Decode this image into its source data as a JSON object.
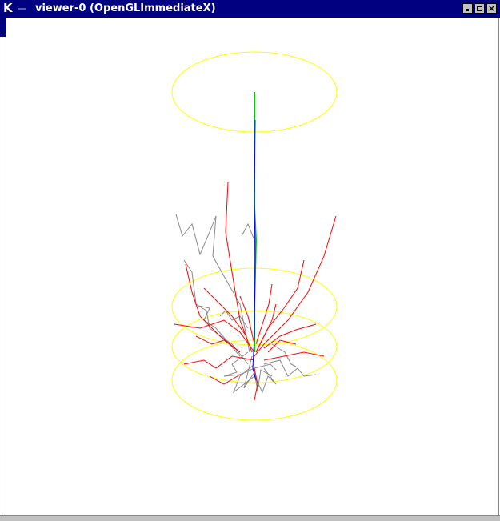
{
  "window": {
    "icon_label": "K",
    "title": "viewer-0 (OpenGLImmediateX)"
  }
}
